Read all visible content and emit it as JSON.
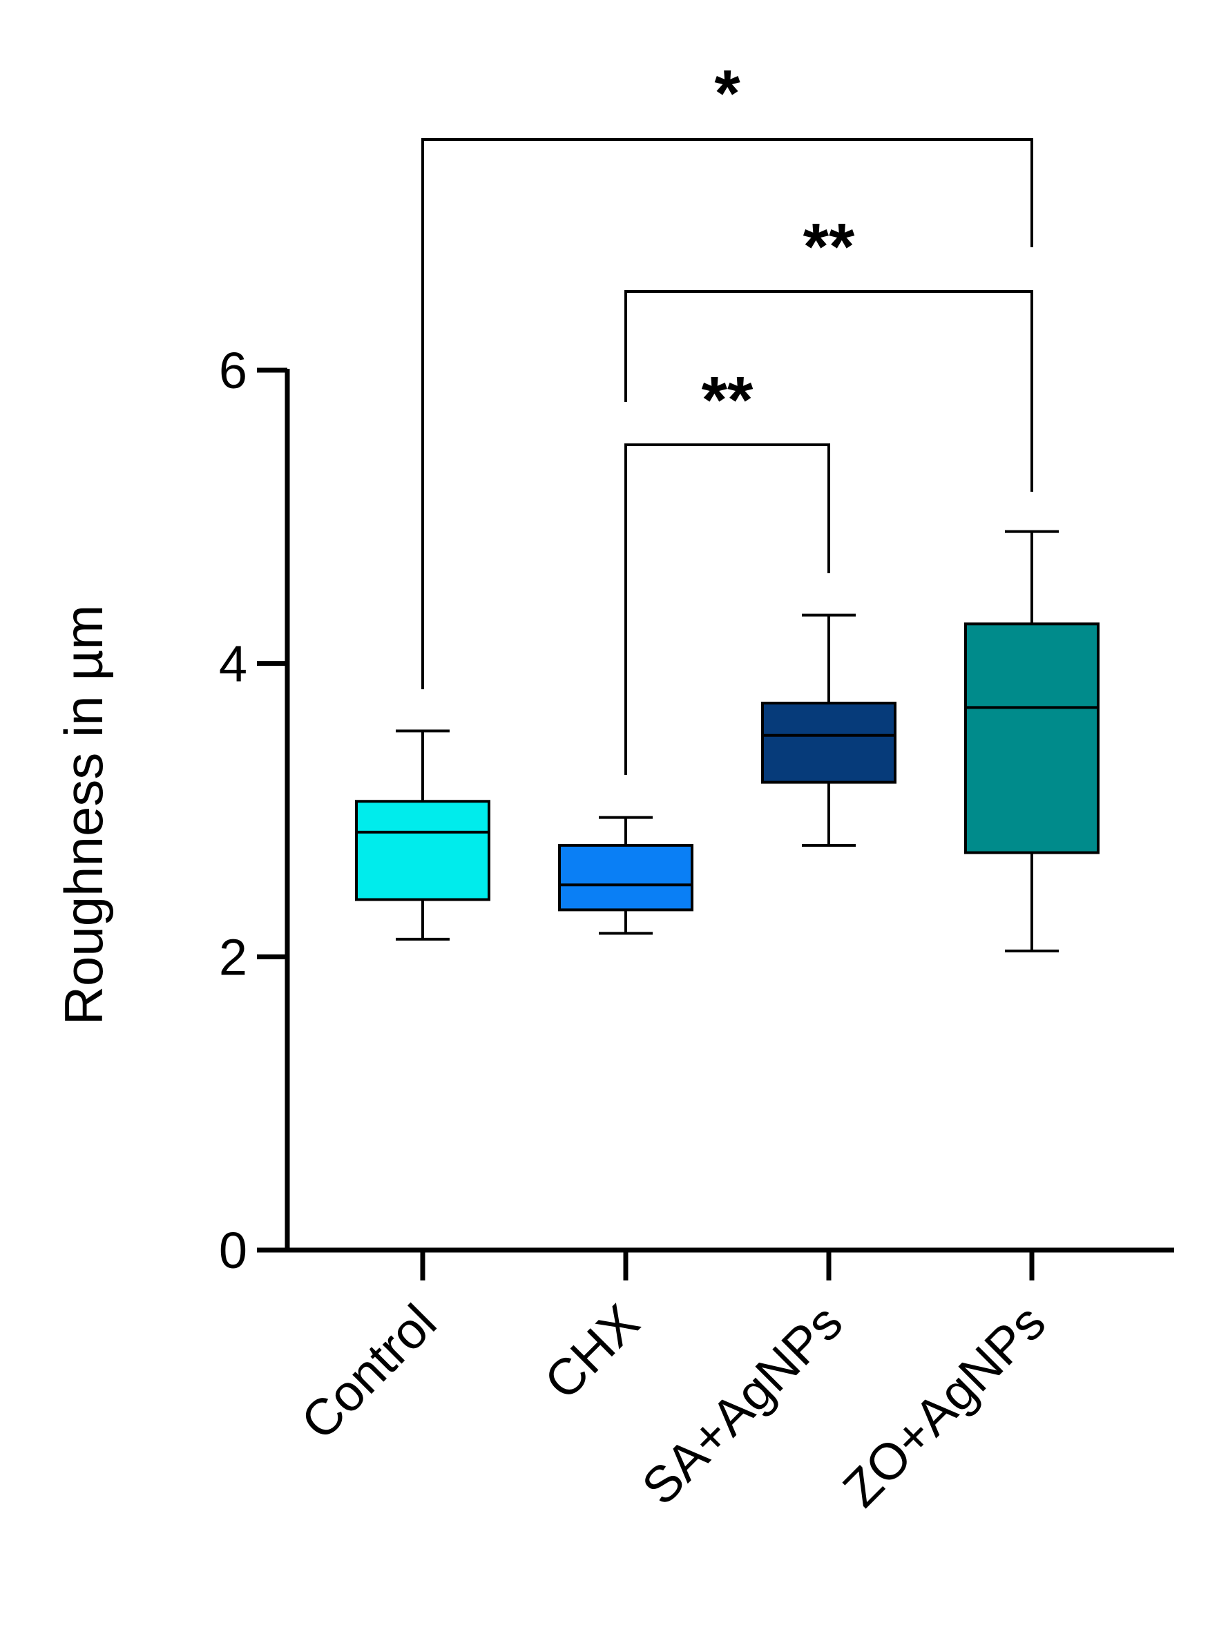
{
  "chart_data": {
    "type": "box",
    "title": "",
    "xlabel": "",
    "ylabel": "Roughness in µm",
    "ylim": [
      0,
      6
    ],
    "yticks": [
      0,
      2,
      4,
      6
    ],
    "ytick_labels": [
      "0",
      "2",
      "4",
      "6"
    ],
    "grid": false,
    "categories": [
      "Control",
      "CHX",
      "SA+AgNPs",
      "ZO+AgNPs"
    ],
    "boxes": [
      {
        "category": "Control",
        "min": 2.12,
        "q1": 2.39,
        "median": 2.85,
        "q3": 3.06,
        "max": 3.54,
        "color": "#00ECEC"
      },
      {
        "category": "CHX",
        "min": 2.16,
        "q1": 2.32,
        "median": 2.49,
        "q3": 2.76,
        "max": 2.95,
        "color": "#0A7FF5"
      },
      {
        "category": "SA+AgNPs",
        "min": 2.76,
        "q1": 3.19,
        "median": 3.51,
        "q3": 3.73,
        "max": 4.33,
        "color": "#063B7A"
      },
      {
        "category": "ZO+AgNPs",
        "min": 2.04,
        "q1": 2.71,
        "median": 3.7,
        "q3": 4.27,
        "max": 4.9,
        "color": "#008B8B"
      }
    ],
    "significance": [
      {
        "from": "Control",
        "to": "ZO+AgNPs",
        "label": "*"
      },
      {
        "from": "CHX",
        "to": "ZO+AgNPs",
        "label": "**"
      },
      {
        "from": "CHX",
        "to": "SA+AgNPs",
        "label": "**"
      }
    ]
  }
}
